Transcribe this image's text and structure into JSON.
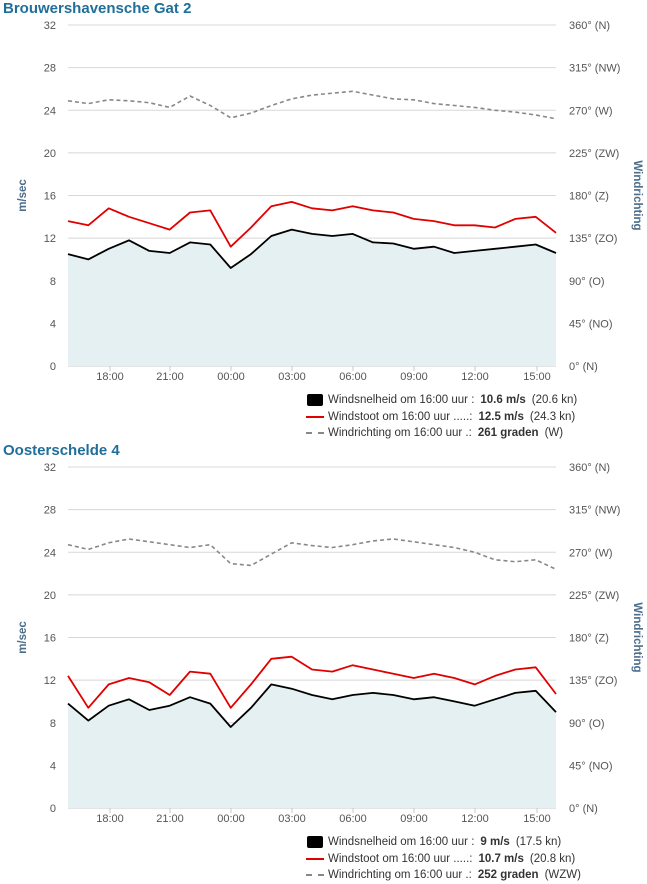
{
  "stations": [
    {
      "title": "Brouwershavensche Gat 2",
      "axes": {
        "left_label": "m/sec",
        "right_label": "Windrichting",
        "left_ticks": [
          "0",
          "4",
          "8",
          "12",
          "16",
          "20",
          "24",
          "28",
          "32"
        ],
        "right_ticks": [
          "0° (N)",
          "45° (NO)",
          "90° (O)",
          "135° (ZO)",
          "180° (Z)",
          "225° (ZW)",
          "270° (W)",
          "315° (NW)",
          "360° (N)"
        ],
        "x_ticks": [
          "18:00",
          "21:00",
          "00:00",
          "03:00",
          "06:00",
          "09:00",
          "12:00",
          "15:00"
        ]
      },
      "legend": [
        {
          "label": "Windsnelheid om 16:00 uur :",
          "value": "10.6 m/s",
          "extra": "(20.6 kn)"
        },
        {
          "label": "Windstoot om 16:00 uur .....:",
          "value": "12.5 m/s",
          "extra": "(24.3 kn)"
        },
        {
          "label": "Windrichting om 16:00 uur .:",
          "value": "261 graden",
          "extra": "(W)"
        }
      ],
      "chart_data": {
        "type": "line",
        "ylim": [
          0,
          32
        ],
        "y2lim": [
          0,
          360
        ],
        "x": [
          "16:00",
          "17:00",
          "18:00",
          "19:00",
          "20:00",
          "21:00",
          "22:00",
          "23:00",
          "00:00",
          "01:00",
          "02:00",
          "03:00",
          "04:00",
          "05:00",
          "06:00",
          "07:00",
          "08:00",
          "09:00",
          "10:00",
          "11:00",
          "12:00",
          "13:00",
          "14:00",
          "15:00",
          "16:00"
        ],
        "series": [
          {
            "values": [
              10.5,
              10.0,
              11.0,
              11.8,
              10.8,
              10.6,
              11.6,
              11.4,
              9.2,
              10.5,
              12.2,
              12.8,
              12.4,
              12.2,
              12.4,
              11.6,
              11.5,
              11.0,
              11.2,
              10.6,
              10.8,
              11.0,
              11.2,
              11.4,
              10.6
            ],
            "color": "#000000",
            "fill": true
          },
          {
            "values": [
              13.6,
              13.2,
              14.8,
              14.0,
              13.4,
              12.8,
              14.4,
              14.6,
              11.2,
              13.0,
              15.0,
              15.4,
              14.8,
              14.6,
              15.0,
              14.6,
              14.4,
              13.8,
              13.6,
              13.2,
              13.2,
              13.0,
              13.8,
              14.0,
              12.5
            ],
            "color": "#e00000"
          },
          {
            "values": [
              280,
              277,
              281,
              280,
              278,
              273,
              285,
              275,
              262,
              267,
              275,
              282,
              286,
              288,
              290,
              286,
              282,
              281,
              277,
              275,
              273,
              270,
              268,
              265,
              261
            ],
            "color": "#888888",
            "dashed": true,
            "axis": "right"
          }
        ]
      }
    },
    {
      "title": "Oosterschelde 4",
      "axes": {
        "left_label": "m/sec",
        "right_label": "Windrichting",
        "left_ticks": [
          "0",
          "4",
          "8",
          "12",
          "16",
          "20",
          "24",
          "28",
          "32"
        ],
        "right_ticks": [
          "0° (N)",
          "45° (NO)",
          "90° (O)",
          "135° (ZO)",
          "180° (Z)",
          "225° (ZW)",
          "270° (W)",
          "315° (NW)",
          "360° (N)"
        ],
        "x_ticks": [
          "18:00",
          "21:00",
          "00:00",
          "03:00",
          "06:00",
          "09:00",
          "12:00",
          "15:00"
        ]
      },
      "legend": [
        {
          "label": "Windsnelheid om 16:00 uur :",
          "value": "9 m/s",
          "extra": "(17.5 kn)"
        },
        {
          "label": "Windstoot om 16:00 uur .....:",
          "value": "10.7 m/s",
          "extra": "(20.8 kn)"
        },
        {
          "label": "Windrichting om 16:00 uur .:",
          "value": "252 graden",
          "extra": "(WZW)"
        }
      ],
      "chart_data": {
        "type": "line",
        "ylim": [
          0,
          32
        ],
        "y2lim": [
          0,
          360
        ],
        "x": [
          "16:00",
          "17:00",
          "18:00",
          "19:00",
          "20:00",
          "21:00",
          "22:00",
          "23:00",
          "00:00",
          "01:00",
          "02:00",
          "03:00",
          "04:00",
          "05:00",
          "06:00",
          "07:00",
          "08:00",
          "09:00",
          "10:00",
          "11:00",
          "12:00",
          "13:00",
          "14:00",
          "15:00",
          "16:00"
        ],
        "series": [
          {
            "values": [
              9.8,
              8.2,
              9.6,
              10.2,
              9.2,
              9.6,
              10.4,
              9.8,
              7.6,
              9.4,
              11.6,
              11.2,
              10.6,
              10.2,
              10.6,
              10.8,
              10.6,
              10.2,
              10.4,
              10.0,
              9.6,
              10.2,
              10.8,
              11.0,
              9.0
            ],
            "color": "#000000",
            "fill": true
          },
          {
            "values": [
              12.4,
              9.4,
              11.6,
              12.2,
              11.8,
              10.6,
              12.8,
              12.6,
              9.4,
              11.6,
              14.0,
              14.2,
              13.0,
              12.8,
              13.4,
              13.0,
              12.6,
              12.2,
              12.6,
              12.2,
              11.6,
              12.4,
              13.0,
              13.2,
              10.7
            ],
            "color": "#e00000"
          },
          {
            "values": [
              278,
              273,
              280,
              284,
              281,
              278,
              275,
              278,
              258,
              256,
              268,
              280,
              277,
              275,
              278,
              282,
              284,
              281,
              278,
              275,
              270,
              262,
              260,
              262,
              252
            ],
            "color": "#888888",
            "dashed": true,
            "axis": "right"
          }
        ]
      }
    }
  ]
}
